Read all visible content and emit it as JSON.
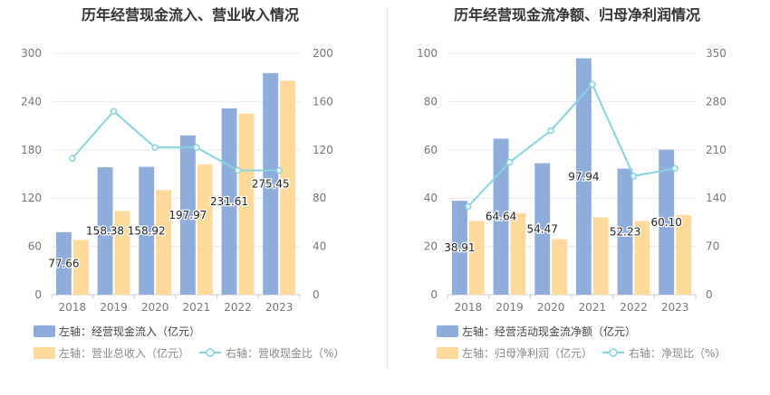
{
  "colors": {
    "bar_left": "#8eaddb",
    "bar_right": "#fdd99a",
    "line": "#86d4dc",
    "axis_text": "#777777",
    "grid": "#e9e9e9",
    "title": "#333333"
  },
  "chart_data": [
    {
      "type": "bar",
      "title": "历年经营现金流入、营业收入情况",
      "categories": [
        "2018",
        "2019",
        "2020",
        "2021",
        "2022",
        "2023"
      ],
      "y_left": {
        "range": [
          0,
          300
        ],
        "ticks": [
          "0",
          "60",
          "120",
          "180",
          "240",
          "300"
        ]
      },
      "y_right": {
        "range": [
          0,
          200
        ],
        "ticks": [
          "0",
          "40",
          "80",
          "120",
          "160",
          "200"
        ]
      },
      "series": [
        {
          "name": "左轴：经营现金流入（亿元）",
          "type": "bar",
          "axis": "left",
          "values": [
            77.66,
            158.38,
            158.92,
            197.97,
            231.61,
            275.45
          ],
          "labels": [
            "77.66",
            "158.38",
            "158.92",
            "197.97",
            "231.61",
            "275.45"
          ]
        },
        {
          "name": "左轴：营业总收入（亿元）",
          "type": "bar",
          "axis": "left",
          "values": [
            68,
            104,
            130,
            162,
            225,
            266
          ]
        },
        {
          "name": "右轴：营收现金比（%）",
          "type": "line",
          "axis": "right",
          "values": [
            113,
            152,
            122,
            122,
            103,
            103
          ]
        }
      ],
      "grid": true,
      "legend": "bottom"
    },
    {
      "type": "bar",
      "title": "历年经营现金流净额、归母净利润情况",
      "categories": [
        "2018",
        "2019",
        "2020",
        "2021",
        "2022",
        "2023"
      ],
      "y_left": {
        "range": [
          0,
          100
        ],
        "ticks": [
          "0",
          "20",
          "40",
          "60",
          "80",
          "100"
        ]
      },
      "y_right": {
        "range": [
          0,
          350
        ],
        "ticks": [
          "0",
          "70",
          "140",
          "210",
          "280",
          "350"
        ]
      },
      "series": [
        {
          "name": "左轴：经营活动现金流净额（亿元）",
          "type": "bar",
          "axis": "left",
          "values": [
            38.91,
            64.64,
            54.47,
            97.94,
            52.23,
            60.1
          ],
          "labels": [
            "38.91",
            "64.64",
            "54.47",
            "97.94",
            "52.23",
            "60.10"
          ]
        },
        {
          "name": "左轴：归母净利润（亿元）",
          "type": "bar",
          "axis": "left",
          "values": [
            30.5,
            33.8,
            23,
            32,
            30.5,
            33
          ]
        },
        {
          "name": "右轴：净现比（%）",
          "type": "line",
          "axis": "right",
          "values": [
            128,
            192,
            238,
            305,
            172,
            183
          ]
        }
      ],
      "grid": true,
      "legend": "bottom"
    }
  ]
}
